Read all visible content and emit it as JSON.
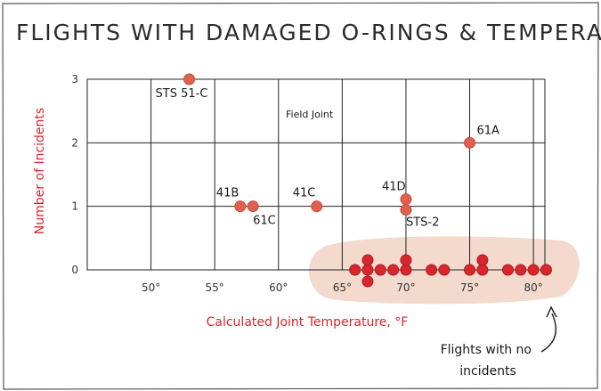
{
  "chart_data": {
    "type": "scatter",
    "title": "FLIGHTS WITH DAMAGED O-RINGS & TEMPERATURE",
    "xlabel": "Calculated Joint Temperature, °F",
    "ylabel": "Number of Incidents",
    "xlim": [
      45,
      82
    ],
    "ylim": [
      0,
      3
    ],
    "xticks": [
      50,
      55,
      60,
      65,
      70,
      75,
      80
    ],
    "xtick_labels": [
      "50°",
      "55°",
      "60°",
      "65°",
      "70°",
      "75°",
      "80°"
    ],
    "yticks": [
      0,
      1,
      2,
      3
    ],
    "ytick_labels": [
      "0",
      "1",
      "2",
      "3"
    ],
    "grid": true,
    "grid_label": "Field Joint",
    "incident_points": [
      {
        "x": 53,
        "y": 3,
        "label": "STS 51-C"
      },
      {
        "x": 57,
        "y": 1,
        "label": "41B"
      },
      {
        "x": 58,
        "y": 1,
        "label": "61C"
      },
      {
        "x": 63,
        "y": 1,
        "label": "41C"
      },
      {
        "x": 70,
        "y": 1,
        "label": "41D"
      },
      {
        "x": 70,
        "y": 1,
        "label": "STS-2"
      },
      {
        "x": 75,
        "y": 2,
        "label": "61A"
      }
    ],
    "no_incident_points": [
      {
        "x": 66,
        "y": 0
      },
      {
        "x": 67,
        "y": 0
      },
      {
        "x": 67,
        "y": 0
      },
      {
        "x": 67,
        "y": 0
      },
      {
        "x": 68,
        "y": 0
      },
      {
        "x": 69,
        "y": 0
      },
      {
        "x": 70,
        "y": 0
      },
      {
        "x": 70,
        "y": 0
      },
      {
        "x": 72,
        "y": 0
      },
      {
        "x": 73,
        "y": 0
      },
      {
        "x": 75,
        "y": 0
      },
      {
        "x": 76,
        "y": 0
      },
      {
        "x": 76,
        "y": 0
      },
      {
        "x": 78,
        "y": 0
      },
      {
        "x": 79,
        "y": 0
      },
      {
        "x": 80,
        "y": 0
      },
      {
        "x": 81,
        "y": 0
      }
    ],
    "no_incident_annotation": "Flights with no incidents"
  },
  "colors": {
    "point": "#e0604f",
    "point_no_incident": "#d8262c",
    "highlight": "#f3d5c8",
    "grid": "#222222",
    "axis_label": "#d6262d"
  }
}
